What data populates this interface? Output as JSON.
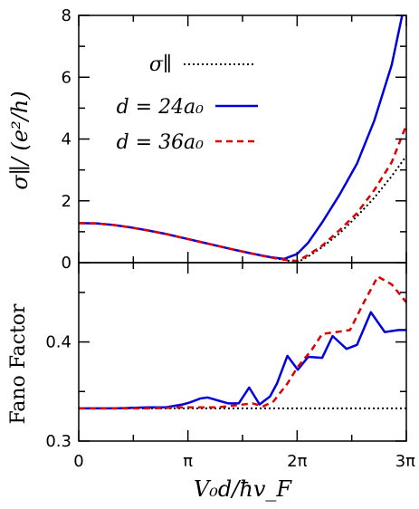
{
  "chart_data": [
    {
      "type": "line",
      "panel": "top",
      "xlabel": "V₀d/ħv_F",
      "ylabel": "σ∥/ (e²/h)",
      "xlim": [
        0,
        9.42
      ],
      "ylim": [
        0,
        8
      ],
      "xticks": [],
      "yticks": [
        0,
        2,
        4,
        6,
        8
      ],
      "ytick_labels": [
        "0",
        "2",
        "4",
        "6",
        "8"
      ],
      "legend_position": "top-right",
      "series": [
        {
          "name": "σ∥",
          "style": "dotted",
          "color": "#000000",
          "x": [
            0,
            0.5,
            1,
            1.5,
            2,
            2.5,
            3,
            3.5,
            4,
            4.5,
            5,
            5.5,
            5.9,
            6.28,
            6.6,
            7.0,
            7.5,
            8.0,
            8.5,
            9.0,
            9.42
          ],
          "y": [
            1.28,
            1.27,
            1.22,
            1.14,
            1.04,
            0.93,
            0.8,
            0.67,
            0.54,
            0.41,
            0.29,
            0.17,
            0.09,
            0.01,
            0.2,
            0.5,
            0.95,
            1.5,
            2.1,
            2.8,
            3.45
          ]
        },
        {
          "name": "d = 24a₀",
          "style": "solid",
          "color": "#0000dd",
          "x": [
            0,
            0.5,
            1,
            1.5,
            2,
            2.5,
            3,
            3.5,
            4,
            4.5,
            5,
            5.5,
            5.9,
            6.28,
            6.6,
            7.0,
            7.5,
            8.0,
            8.5,
            9.0,
            9.3
          ],
          "y": [
            1.28,
            1.27,
            1.22,
            1.14,
            1.04,
            0.93,
            0.8,
            0.67,
            0.54,
            0.41,
            0.29,
            0.18,
            0.12,
            0.28,
            0.65,
            1.3,
            2.2,
            3.2,
            4.6,
            6.4,
            8.0
          ]
        },
        {
          "name": "d = 36a₀",
          "style": "dashed",
          "color": "#dd0000",
          "x": [
            0,
            0.5,
            1,
            1.5,
            2,
            2.5,
            3,
            3.5,
            4,
            4.5,
            5,
            5.5,
            5.9,
            6.28,
            6.6,
            7.0,
            7.5,
            8.0,
            8.5,
            9.0,
            9.42
          ],
          "y": [
            1.28,
            1.27,
            1.22,
            1.14,
            1.04,
            0.93,
            0.8,
            0.67,
            0.54,
            0.41,
            0.29,
            0.17,
            0.1,
            0.05,
            0.25,
            0.55,
            1.05,
            1.6,
            2.35,
            3.25,
            4.45
          ]
        }
      ]
    },
    {
      "type": "line",
      "panel": "bottom",
      "xlabel": "V₀d/ħv_F",
      "ylabel": "Fano Factor",
      "xlim": [
        0,
        9.42
      ],
      "ylim": [
        0.3,
        0.48
      ],
      "xticks": [
        0,
        3.14,
        6.28,
        9.42
      ],
      "xtick_labels": [
        "0",
        "π",
        "2π",
        "3π"
      ],
      "yticks": [
        0.3,
        0.4
      ],
      "ytick_labels": [
        "0.3",
        "0.4"
      ],
      "series": [
        {
          "name": "σ∥",
          "style": "dotted",
          "color": "#000000",
          "x": [
            0,
            9.42
          ],
          "y": [
            0.333,
            0.333
          ]
        },
        {
          "name": "d = 24a₀",
          "style": "solid",
          "color": "#0000dd",
          "x": [
            0,
            1.0,
            2.0,
            2.5,
            3.0,
            3.2,
            3.5,
            3.7,
            4.0,
            4.3,
            4.6,
            4.9,
            5.2,
            5.5,
            5.7,
            6.0,
            6.3,
            6.6,
            7.0,
            7.3,
            7.7,
            8.0,
            8.4,
            8.8,
            9.2,
            9.42
          ],
          "y": [
            0.333,
            0.333,
            0.334,
            0.334,
            0.337,
            0.339,
            0.343,
            0.344,
            0.341,
            0.338,
            0.338,
            0.354,
            0.337,
            0.345,
            0.358,
            0.386,
            0.372,
            0.385,
            0.384,
            0.406,
            0.393,
            0.397,
            0.43,
            0.41,
            0.412,
            0.412
          ]
        },
        {
          "name": "d = 36a₀",
          "style": "dashed",
          "color": "#dd0000",
          "x": [
            0,
            1.0,
            2.0,
            3.0,
            4.0,
            4.5,
            5.0,
            5.3,
            5.6,
            6.0,
            6.3,
            6.7,
            7.0,
            7.4,
            7.8,
            8.2,
            8.6,
            9.0,
            9.42
          ],
          "y": [
            0.333,
            0.333,
            0.333,
            0.334,
            0.334,
            0.336,
            0.338,
            0.335,
            0.34,
            0.358,
            0.375,
            0.392,
            0.408,
            0.41,
            0.412,
            0.44,
            0.466,
            0.458,
            0.44
          ]
        }
      ]
    }
  ]
}
